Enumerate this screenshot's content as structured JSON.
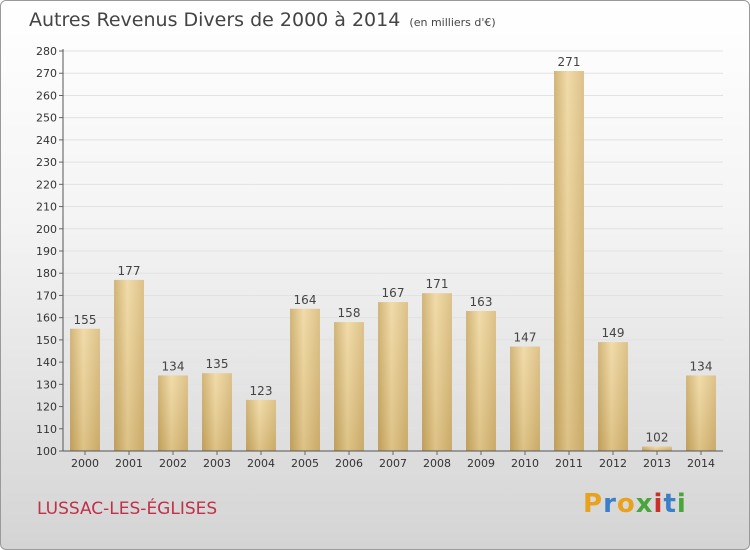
{
  "title": "Autres Revenus Divers de 2000 à 2014",
  "subtitle": "(en milliers d'€)",
  "location": "LUSSAC-LES-ÉGLISES",
  "logo": {
    "letters": [
      "P",
      "r",
      "o",
      "x",
      "i",
      "t",
      "i"
    ],
    "colors": [
      "#e8a21d",
      "#3a7fc8",
      "#e8a21d",
      "#4aa63c",
      "#c8302a",
      "#3a7fc8",
      "#4aa63c"
    ]
  },
  "chart_data": {
    "type": "bar",
    "categories": [
      "2000",
      "2001",
      "2002",
      "2003",
      "2004",
      "2005",
      "2006",
      "2007",
      "2008",
      "2009",
      "2010",
      "2011",
      "2012",
      "2013",
      "2014"
    ],
    "values": [
      155,
      177,
      134,
      135,
      123,
      164,
      158,
      167,
      171,
      163,
      147,
      271,
      149,
      102,
      134
    ],
    "ylim": [
      100,
      280
    ],
    "ytick_step": 10,
    "yticks": [
      "100",
      "110",
      "120",
      "130",
      "140",
      "150",
      "160",
      "170",
      "180",
      "190",
      "200",
      "210",
      "220",
      "230",
      "240",
      "250",
      "260",
      "270",
      "280"
    ],
    "grid": true,
    "bar_color": "#e6c67e"
  }
}
